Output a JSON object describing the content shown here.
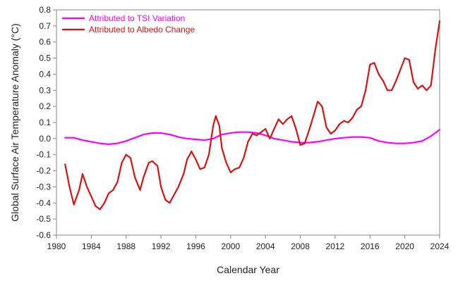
{
  "chart_data": {
    "type": "line",
    "xlabel": "Calendar Year",
    "ylabel": "Global Surface Air Temperature Anomaly (°C)",
    "xlim": [
      1980,
      2024
    ],
    "ylim": [
      -0.6,
      0.8
    ],
    "x_ticks": [
      "1980",
      "1984",
      "1988",
      "1992",
      "1996",
      "2000",
      "2004",
      "2008",
      "2012",
      "2016",
      "2020",
      "2024"
    ],
    "y_ticks": [
      "0.8",
      "0.7",
      "0.6",
      "0.5",
      "0.4",
      "0.3",
      "0.2",
      "0.1",
      "0.0",
      "-0.1",
      "-0.2",
      "-0.3",
      "-0.4",
      "-0.5",
      "-0.6"
    ],
    "grid": false,
    "legend_position": "top-left",
    "series": [
      {
        "name": "Attributed to TSI Variation",
        "color": "#ff00ff",
        "points": [
          [
            1981,
            0.005
          ],
          [
            1982,
            0.005
          ],
          [
            1983,
            -0.01
          ],
          [
            1984,
            -0.02
          ],
          [
            1985,
            -0.03
          ],
          [
            1986,
            -0.035
          ],
          [
            1987,
            -0.03
          ],
          [
            1988,
            -0.015
          ],
          [
            1989,
            0.005
          ],
          [
            1990,
            0.025
          ],
          [
            1991,
            0.035
          ],
          [
            1992,
            0.035
          ],
          [
            1993,
            0.025
          ],
          [
            1994,
            0.01
          ],
          [
            1995,
            0.0
          ],
          [
            1996,
            -0.005
          ],
          [
            1997,
            -0.01
          ],
          [
            1998,
            0.0
          ],
          [
            1999,
            0.025
          ],
          [
            2000,
            0.035
          ],
          [
            2001,
            0.04
          ],
          [
            2002,
            0.04
          ],
          [
            2003,
            0.035
          ],
          [
            2004,
            0.02
          ],
          [
            2005,
            0.0
          ],
          [
            2006,
            -0.01
          ],
          [
            2007,
            -0.02
          ],
          [
            2008,
            -0.025
          ],
          [
            2009,
            -0.025
          ],
          [
            2010,
            -0.02
          ],
          [
            2011,
            -0.01
          ],
          [
            2012,
            0.0
          ],
          [
            2013,
            0.005
          ],
          [
            2014,
            0.01
          ],
          [
            2015,
            0.01
          ],
          [
            2016,
            0.005
          ],
          [
            2017,
            -0.015
          ],
          [
            2018,
            -0.025
          ],
          [
            2019,
            -0.03
          ],
          [
            2020,
            -0.03
          ],
          [
            2021,
            -0.025
          ],
          [
            2022,
            -0.015
          ],
          [
            2023,
            0.015
          ],
          [
            2024,
            0.055
          ]
        ]
      },
      {
        "name": "Attributed to Albedo Change",
        "color": "#dd1111",
        "points": [
          [
            1981,
            -0.16
          ],
          [
            1981.5,
            -0.3
          ],
          [
            1982,
            -0.41
          ],
          [
            1982.6,
            -0.32
          ],
          [
            1983,
            -0.22
          ],
          [
            1983.5,
            -0.3
          ],
          [
            1984,
            -0.36
          ],
          [
            1984.5,
            -0.42
          ],
          [
            1985,
            -0.44
          ],
          [
            1985.5,
            -0.4
          ],
          [
            1986,
            -0.34
          ],
          [
            1986.5,
            -0.32
          ],
          [
            1987,
            -0.27
          ],
          [
            1987.5,
            -0.15
          ],
          [
            1988,
            -0.1
          ],
          [
            1988.5,
            -0.12
          ],
          [
            1989,
            -0.24
          ],
          [
            1989.6,
            -0.32
          ],
          [
            1990,
            -0.24
          ],
          [
            1990.6,
            -0.15
          ],
          [
            1991,
            -0.14
          ],
          [
            1991.6,
            -0.17
          ],
          [
            1992,
            -0.3
          ],
          [
            1992.5,
            -0.38
          ],
          [
            1993,
            -0.4
          ],
          [
            1993.5,
            -0.35
          ],
          [
            1994,
            -0.3
          ],
          [
            1994.6,
            -0.22
          ],
          [
            1995,
            -0.13
          ],
          [
            1995.5,
            -0.08
          ],
          [
            1996,
            -0.13
          ],
          [
            1996.5,
            -0.19
          ],
          [
            1997,
            -0.18
          ],
          [
            1997.5,
            -0.1
          ],
          [
            1998,
            0.08
          ],
          [
            1998.3,
            0.14
          ],
          [
            1998.7,
            0.08
          ],
          [
            1999,
            -0.06
          ],
          [
            1999.5,
            -0.15
          ],
          [
            2000,
            -0.21
          ],
          [
            2000.5,
            -0.19
          ],
          [
            2001,
            -0.18
          ],
          [
            2001.5,
            -0.12
          ],
          [
            2002,
            -0.02
          ],
          [
            2002.5,
            0.03
          ],
          [
            2003,
            0.02
          ],
          [
            2003.5,
            0.04
          ],
          [
            2004,
            0.06
          ],
          [
            2004.5,
            0.0
          ],
          [
            2005,
            0.06
          ],
          [
            2005.5,
            0.12
          ],
          [
            2006,
            0.09
          ],
          [
            2006.5,
            0.12
          ],
          [
            2007,
            0.14
          ],
          [
            2007.5,
            0.06
          ],
          [
            2008,
            -0.04
          ],
          [
            2008.5,
            -0.03
          ],
          [
            2009,
            0.05
          ],
          [
            2009.5,
            0.14
          ],
          [
            2010,
            0.23
          ],
          [
            2010.5,
            0.2
          ],
          [
            2011,
            0.07
          ],
          [
            2011.5,
            0.03
          ],
          [
            2012,
            0.05
          ],
          [
            2012.5,
            0.09
          ],
          [
            2013,
            0.11
          ],
          [
            2013.5,
            0.1
          ],
          [
            2014,
            0.13
          ],
          [
            2014.5,
            0.18
          ],
          [
            2015,
            0.2
          ],
          [
            2015.5,
            0.3
          ],
          [
            2016,
            0.46
          ],
          [
            2016.5,
            0.47
          ],
          [
            2017,
            0.4
          ],
          [
            2017.5,
            0.36
          ],
          [
            2018,
            0.3
          ],
          [
            2018.5,
            0.3
          ],
          [
            2019,
            0.36
          ],
          [
            2019.5,
            0.43
          ],
          [
            2020,
            0.5
          ],
          [
            2020.5,
            0.49
          ],
          [
            2021,
            0.35
          ],
          [
            2021.5,
            0.31
          ],
          [
            2022,
            0.33
          ],
          [
            2022.5,
            0.3
          ],
          [
            2023,
            0.33
          ],
          [
            2023.5,
            0.55
          ],
          [
            2024,
            0.73
          ]
        ]
      }
    ]
  }
}
